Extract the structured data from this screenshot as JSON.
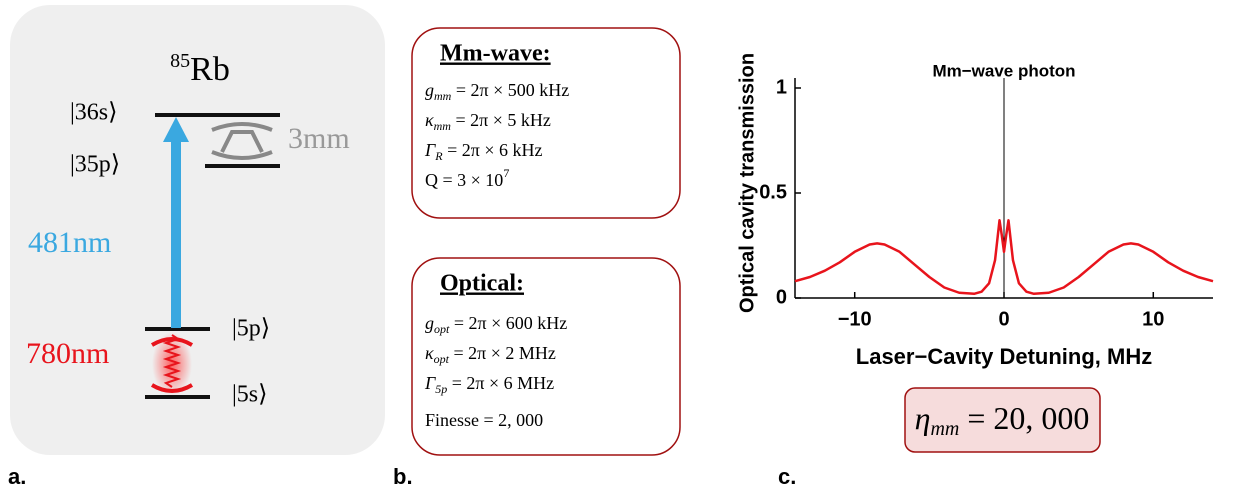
{
  "panel_a": {
    "label": "a.",
    "element": {
      "mass": "85",
      "symbol": "Rb"
    },
    "levels": [
      "|36s⟩",
      "|35p⟩",
      "|5p⟩",
      "|5s⟩"
    ],
    "blue_wavelength": "481nm",
    "red_wavelength": "780nm",
    "cavity_size": "3mm"
  },
  "panel_b": {
    "label": "b.",
    "boxes": [
      {
        "header": "Mm-wave:",
        "lines": [
          {
            "var": "g",
            "sub": "mm",
            "expr": " = 2π × 500 kHz"
          },
          {
            "var": "κ",
            "sub": "mm",
            "expr": " = 2π × 5 kHz"
          },
          {
            "var": "Γ",
            "sub": "R",
            "expr": " = 2π × 6 kHz"
          },
          {
            "var": "Q",
            "expr": " = 3 × 10",
            "sup": "7"
          }
        ]
      },
      {
        "header": "Optical:",
        "lines": [
          {
            "var": "g",
            "sub": "opt",
            "expr": " = 2π × 600 kHz"
          },
          {
            "var": "κ",
            "sub": "opt",
            "expr": " = 2π × 2 MHz"
          },
          {
            "var": "Γ",
            "sub": "5p",
            "expr": " = 2π × 6 MHz"
          },
          {
            "var": "Finesse",
            "expr": " = 2, 000"
          }
        ]
      }
    ]
  },
  "panel_c": {
    "label": "c.",
    "result": {
      "var": "η",
      "sub": "mm",
      "expr": " = 20, 000"
    }
  },
  "chart_data": {
    "type": "line",
    "title": "Mm−wave photon",
    "x_label": "Laser−Cavity Detuning, MHz",
    "y_label": "Optical cavity transmission",
    "x": [
      -14,
      -13,
      -12,
      -11,
      -10,
      -9,
      -8.5,
      -8,
      -7,
      -6,
      -5,
      -4,
      -3,
      -2,
      -1.5,
      -1,
      -0.6,
      -0.3,
      -0.15,
      0,
      0.15,
      0.3,
      0.6,
      1,
      1.5,
      2,
      3,
      4,
      5,
      6,
      7,
      8,
      8.5,
      9,
      10,
      11,
      12,
      13,
      14
    ],
    "series": [
      {
        "color": "#e8141c",
        "values": [
          0.08,
          0.1,
          0.13,
          0.17,
          0.22,
          0.255,
          0.26,
          0.255,
          0.22,
          0.16,
          0.1,
          0.05,
          0.025,
          0.02,
          0.03,
          0.07,
          0.18,
          0.37,
          0.3,
          0.22,
          0.3,
          0.37,
          0.18,
          0.07,
          0.03,
          0.02,
          0.025,
          0.05,
          0.1,
          0.16,
          0.22,
          0.255,
          0.26,
          0.255,
          0.22,
          0.17,
          0.13,
          0.1,
          0.08
        ]
      }
    ],
    "xlim": [
      -14,
      14
    ],
    "ylim": [
      0,
      1
    ],
    "xticks": [
      {
        "value": -10,
        "label": "−10"
      },
      0,
      10
    ],
    "yticks": [
      0,
      0.5,
      1
    ]
  }
}
